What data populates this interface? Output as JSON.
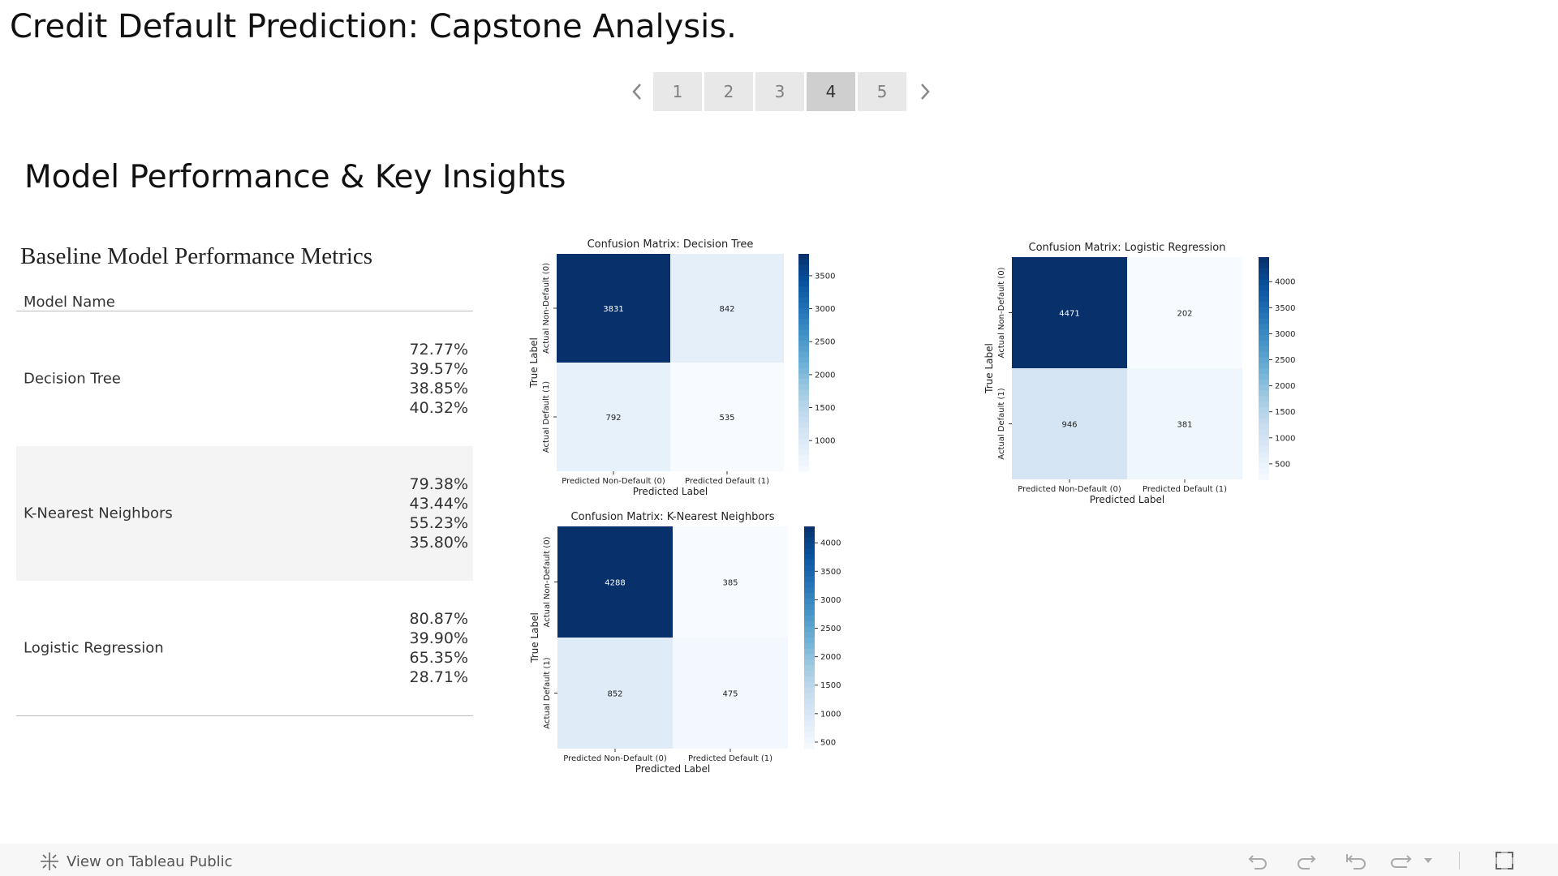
{
  "story_title": "Credit Default Prediction: Capstone Analysis.",
  "pager": {
    "pages": [
      "1",
      "2",
      "3",
      "4",
      "5"
    ],
    "active_index": 3,
    "prev_icon": "chevron-left-icon",
    "next_icon": "chevron-right-icon"
  },
  "section_title": "Model Performance & Key Insights",
  "metrics_table": {
    "title": "Baseline Model Performance Metrics",
    "column_header": "Model Name",
    "rows": [
      {
        "name": "Decision Tree",
        "values": [
          "72.77%",
          "39.57%",
          "38.85%",
          "40.32%"
        ]
      },
      {
        "name": "K-Nearest Neighbors",
        "values": [
          "79.38%",
          "43.44%",
          "55.23%",
          "35.80%"
        ]
      },
      {
        "name": "Logistic Regression",
        "values": [
          "80.87%",
          "39.90%",
          "65.35%",
          "28.71%"
        ]
      }
    ]
  },
  "chart_data": [
    {
      "type": "heatmap",
      "title": "Confusion Matrix: Decision Tree",
      "xlabel": "Predicted Label",
      "ylabel": "True Label",
      "x_categories": [
        "Predicted Non-Default (0)",
        "Predicted Default (1)"
      ],
      "y_categories": [
        "Actual Non-Default (0)",
        "Actual Default (1)"
      ],
      "values": [
        [
          3831,
          842
        ],
        [
          792,
          535
        ]
      ],
      "colorbar_ticks": [
        1000,
        1500,
        2000,
        2500,
        3000,
        3500
      ],
      "colormap": "Blues"
    },
    {
      "type": "heatmap",
      "title": "Confusion Matrix: Logistic Regression",
      "xlabel": "Predicted Label",
      "ylabel": "True Label",
      "x_categories": [
        "Predicted Non-Default (0)",
        "Predicted Default (1)"
      ],
      "y_categories": [
        "Actual Non-Default (0)",
        "Actual Default (1)"
      ],
      "values": [
        [
          4471,
          202
        ],
        [
          946,
          381
        ]
      ],
      "colorbar_ticks": [
        500,
        1000,
        1500,
        2000,
        2500,
        3000,
        3500,
        4000
      ],
      "colormap": "Blues"
    },
    {
      "type": "heatmap",
      "title": "Confusion Matrix: K-Nearest Neighbors",
      "xlabel": "Predicted Label",
      "ylabel": "True Label",
      "x_categories": [
        "Predicted Non-Default (0)",
        "Predicted Default (1)"
      ],
      "y_categories": [
        "Actual Non-Default (0)",
        "Actual Default (1)"
      ],
      "values": [
        [
          4288,
          385
        ],
        [
          852,
          475
        ]
      ],
      "colorbar_ticks": [
        500,
        1000,
        1500,
        2000,
        2500,
        3000,
        3500,
        4000
      ],
      "colormap": "Blues"
    }
  ],
  "footer": {
    "view_on_label": "View on Tableau Public",
    "icons": [
      "tableau-logo-icon",
      "undo-icon",
      "redo-icon",
      "revert-icon",
      "refresh-icon",
      "dropdown-caret-icon",
      "fullscreen-icon"
    ]
  }
}
